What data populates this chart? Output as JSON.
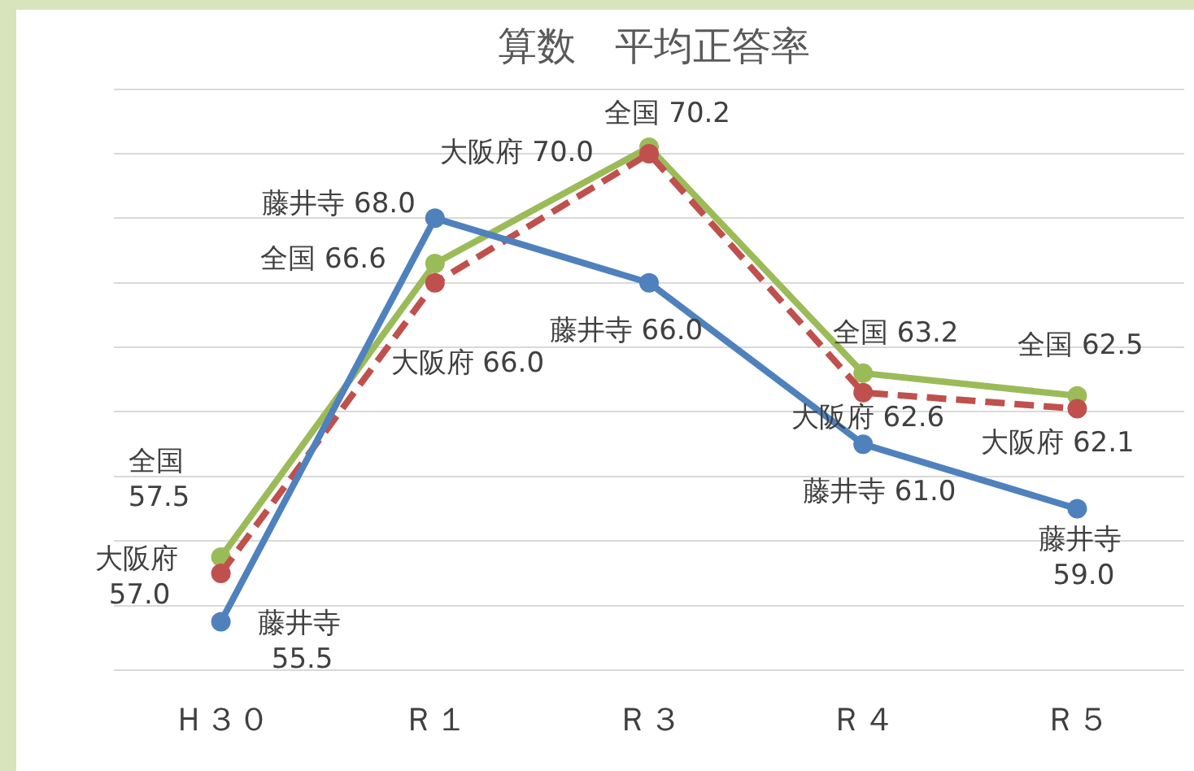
{
  "chart_data": {
    "type": "line",
    "title": "算数　平均正答率",
    "categories": [
      "Ｈ３０",
      "Ｒ１",
      "Ｒ３",
      "Ｒ４",
      "Ｒ５"
    ],
    "series": [
      {
        "name": "藤井寺",
        "color": "#4f81bd",
        "values": [
          55.5,
          68.0,
          66.0,
          61.0,
          59.0
        ],
        "value_labels": [
          "55.5",
          "68.0",
          "66.0",
          "61.0",
          "59.0"
        ]
      },
      {
        "name": "大阪府",
        "color": "#c0504d",
        "line_style": "dashed",
        "values": [
          57.0,
          66.0,
          70.0,
          62.6,
          62.1
        ],
        "value_labels": [
          "57.0",
          "66.0",
          "70.0",
          "62.6",
          "62.1"
        ]
      },
      {
        "name": "全国",
        "color": "#9bbb59",
        "values": [
          57.5,
          66.6,
          70.2,
          63.2,
          62.5
        ],
        "value_labels": [
          "57.5",
          "66.6",
          "70.2",
          "63.2",
          "62.5"
        ]
      }
    ],
    "grid": "y",
    "legend": false,
    "tick_labels": "x",
    "marker": "circle"
  }
}
